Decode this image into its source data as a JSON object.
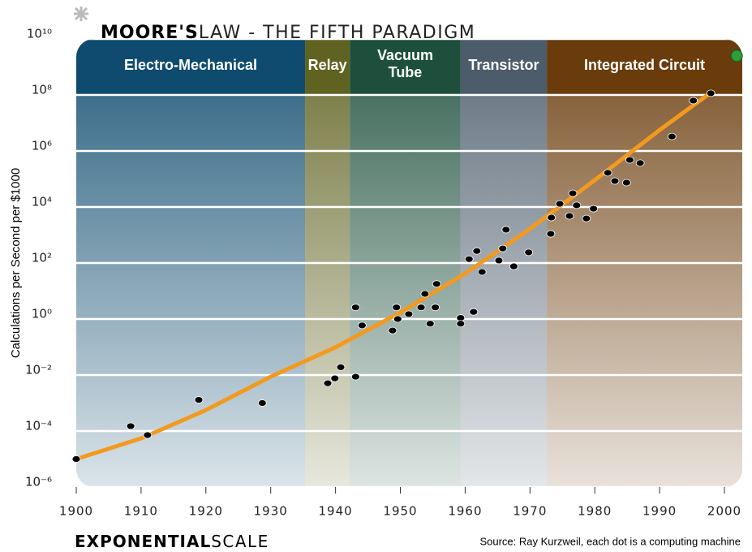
{
  "chart_data": {
    "type": "scatter",
    "title_bold": "MOORE'S",
    "title": "LAW - THE FIFTH PARADIGM",
    "ylabel": "Calculations per Second per $1000",
    "footer_bold": "EXPONENTIAL",
    "footer": "SCALE",
    "source": "Source: Ray Kurzweil, each dot is a computing machine",
    "log_y": true,
    "grid": true,
    "xlim": [
      1900,
      2002.75
    ],
    "xticks": [
      1900,
      1910,
      1920,
      1930,
      1940,
      1950,
      1960,
      1970,
      1980,
      1990,
      2000
    ],
    "ylim": [
      1e-06,
      10000000000.0
    ],
    "yticks": [
      {
        "value": 1e-06,
        "label": "10⁻⁶"
      },
      {
        "value": 0.0001,
        "label": "10⁻⁴"
      },
      {
        "value": 0.01,
        "label": "10⁻²"
      },
      {
        "value": 1,
        "label": "10⁰"
      },
      {
        "value": 100,
        "label": "10²"
      },
      {
        "value": 10000,
        "label": "10⁴"
      },
      {
        "value": 1000000,
        "label": "10⁶"
      },
      {
        "value": 100000000,
        "label": "10⁸"
      },
      {
        "value": 10000000000,
        "label": "10¹⁰"
      }
    ],
    "eras": [
      {
        "name": "Electro-Mechanical",
        "start": 1900,
        "end": 1935.3,
        "color": "#0e4b6e"
      },
      {
        "name": "Relay",
        "start": 1935.3,
        "end": 1942.2,
        "color": "#5f6220"
      },
      {
        "name": "Vacuum Tube",
        "start": 1942.2,
        "end": 1959.3,
        "color": "#1d4f3c"
      },
      {
        "name": "Transistor",
        "start": 1959.3,
        "end": 1972.6,
        "color": "#4c5c6b"
      },
      {
        "name": "Integrated Circuit",
        "start": 1972.6,
        "end": 2002.75,
        "color": "#6a3c0c"
      }
    ],
    "trend": {
      "color": "#f39a1e",
      "x": [
        1900,
        1910,
        1920,
        1930,
        1940,
        1950,
        1960,
        1970,
        1980,
        1990,
        1998
      ],
      "values": [
        1e-05,
        5.5e-05,
        0.00056,
        0.0087,
        0.098,
        1.7,
        42,
        1660,
        91000,
        5600000.0,
        126000000.0
      ]
    },
    "series": [
      {
        "color": "#000000",
        "x": [
          1900,
          1908.4,
          1911.0,
          1918.9,
          1928.7,
          1938.8,
          1939.9,
          1940.8,
          1943.1,
          1943.1,
          1944.1,
          1948.8,
          1949.4,
          1949.6,
          1951.3,
          1953.2,
          1953.8,
          1954.6,
          1955.4,
          1955.6,
          1959.3,
          1959.3,
          1961.3,
          1960.6,
          1961.8,
          1962.6,
          1965.2,
          1965.8,
          1966.3,
          1967.5,
          1969.8,
          1973.2,
          1973.3,
          1974.6,
          1976.1,
          1976.6,
          1977.2,
          1978.7,
          1979.8,
          1982.0,
          1983.1,
          1984.9,
          1985.4,
          1987.0,
          1991.9,
          1995.2,
          1997.9
        ],
        "values": [
          1e-05,
          0.00015,
          7.2e-05,
          0.0013,
          0.001,
          0.0051,
          0.0076,
          0.019,
          0.0087,
          2.6,
          0.59,
          0.39,
          2.6,
          1,
          1.5,
          2.6,
          7.9,
          0.68,
          2.6,
          18,
          1.1,
          0.68,
          1.8,
          138,
          269,
          48,
          123,
          331,
          1550,
          76,
          240,
          1100,
          4200,
          13000,
          4800,
          31000,
          11500,
          3900,
          8700,
          166000,
          85000,
          74000,
          480000,
          370000,
          3300000.0,
          63000000.0,
          115000000.0
        ]
      },
      {
        "color": "#2e9e3a",
        "x": [
          2001.9
        ],
        "values": [
          2500000000.0
        ]
      }
    ]
  }
}
